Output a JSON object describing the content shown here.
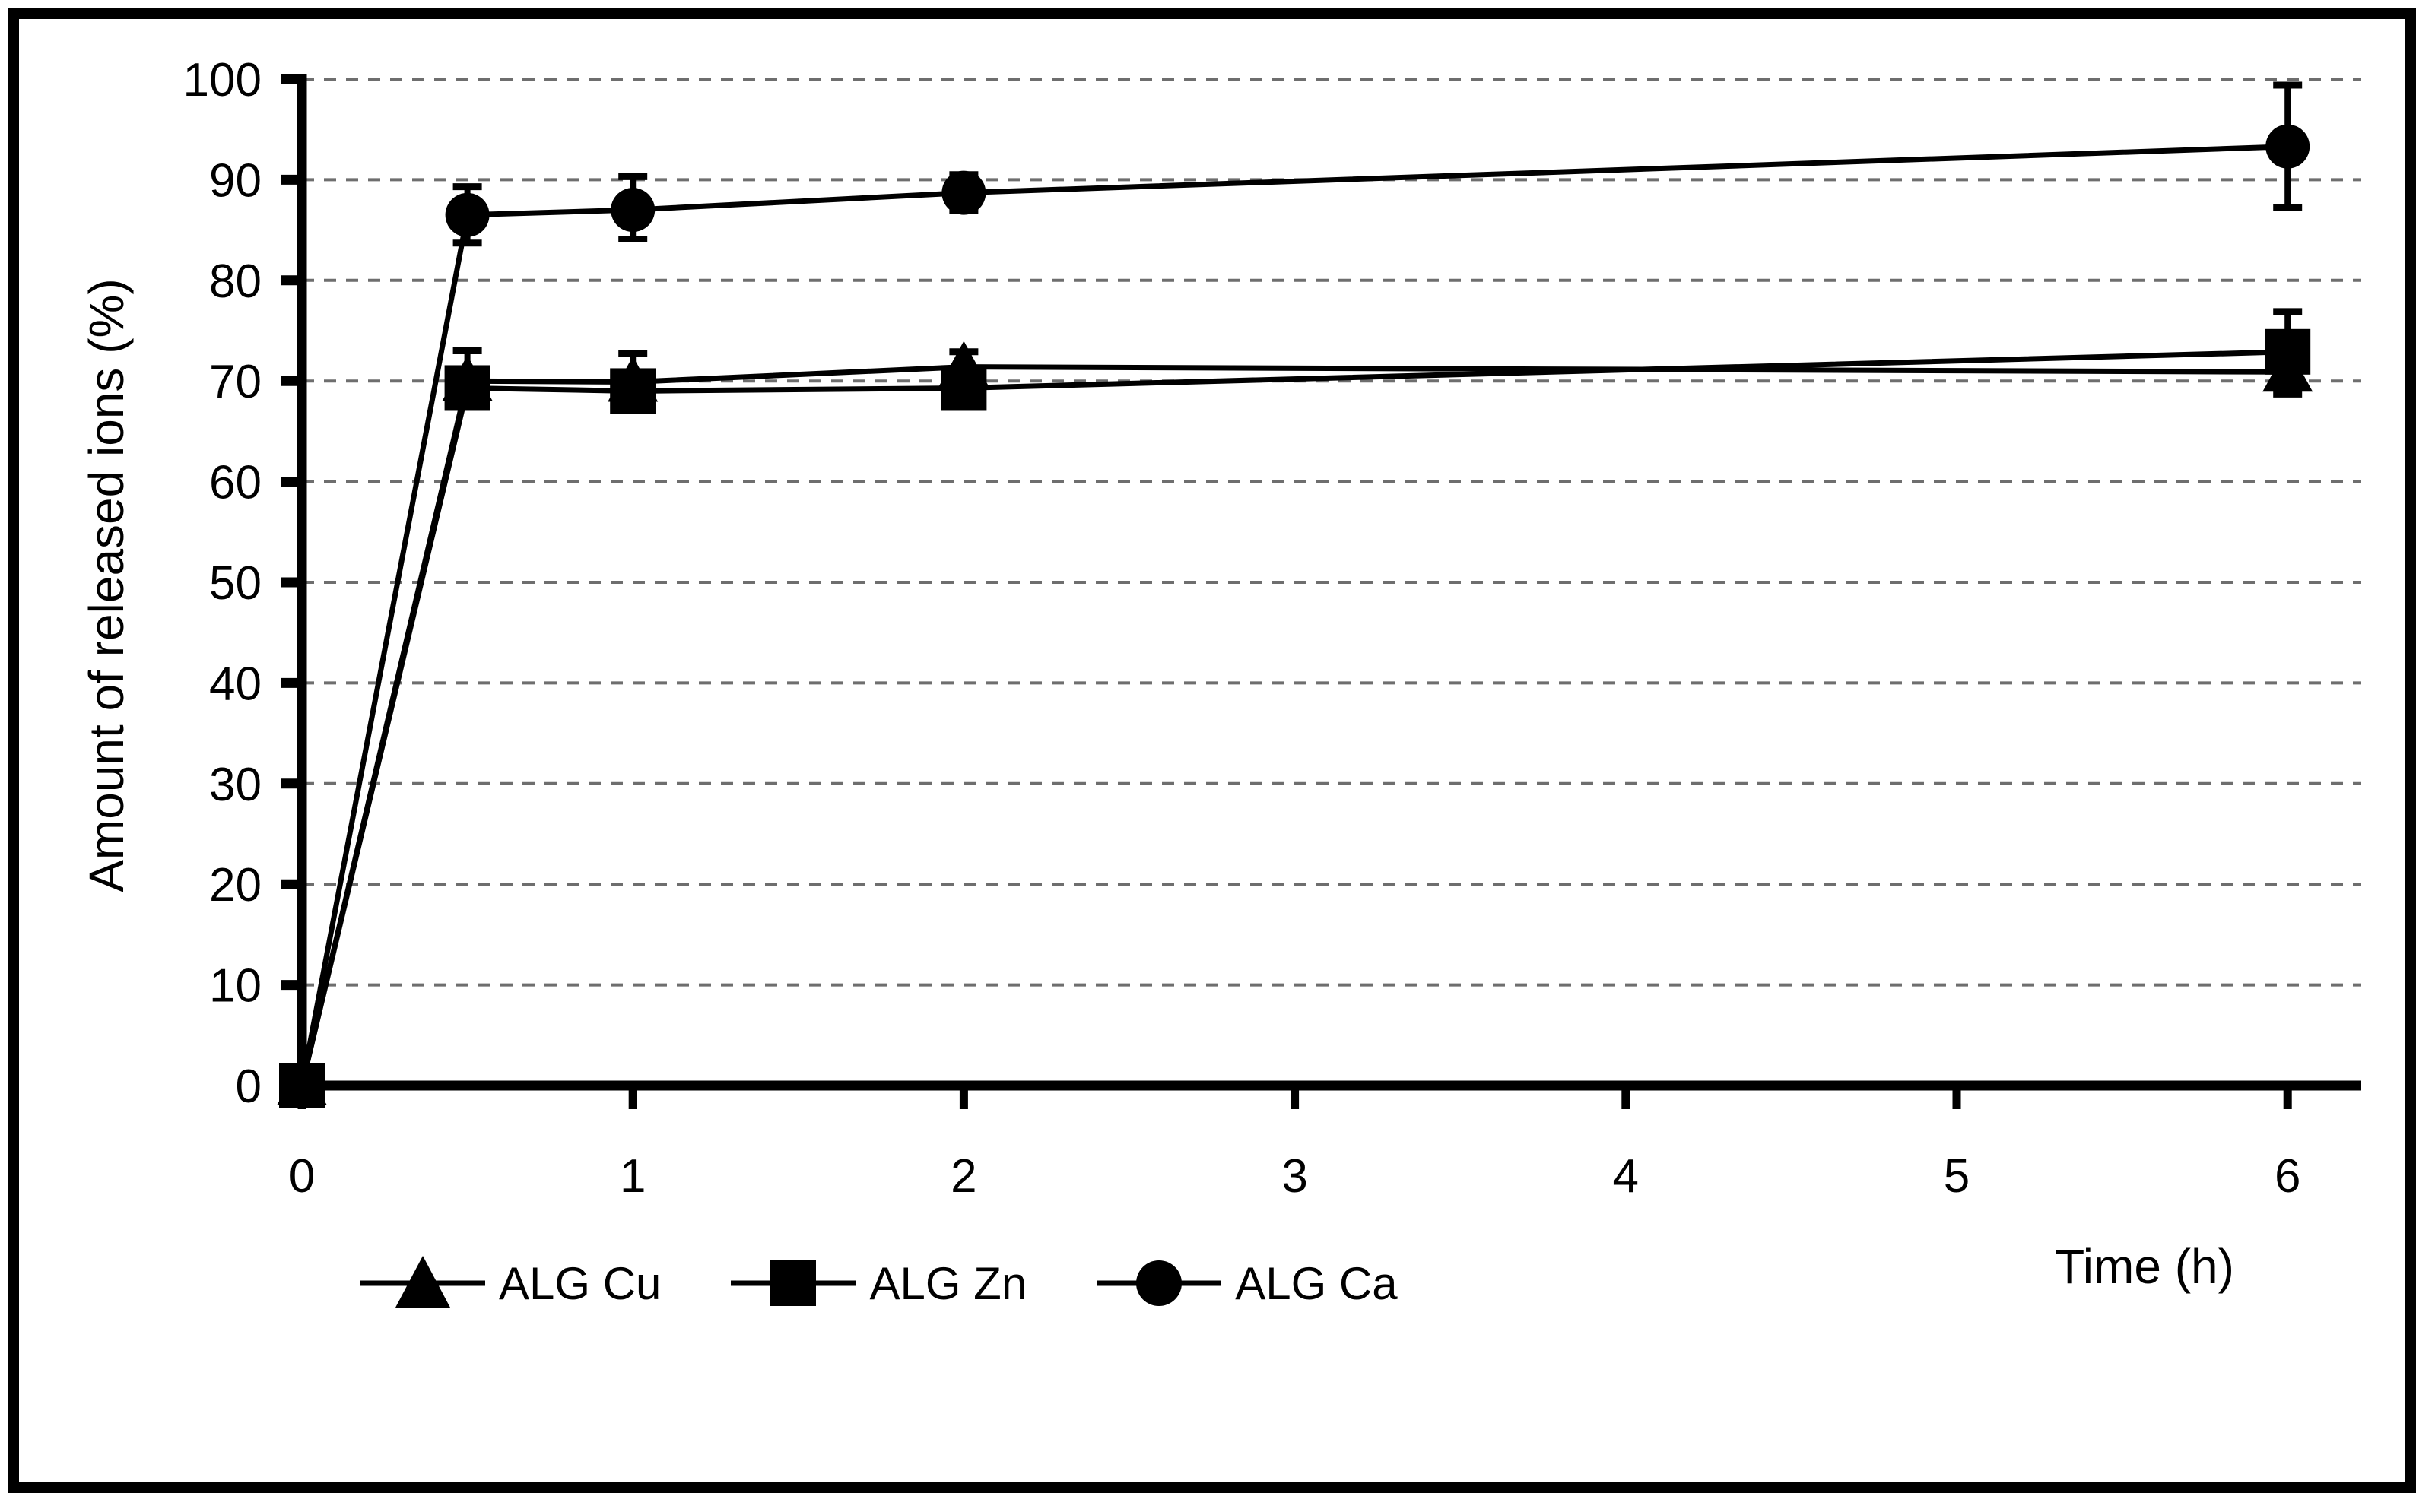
{
  "figure": {
    "background": "#ffffff",
    "border_color": "#000000",
    "axis_color": "#000000",
    "grid_color": "#6e6e6e",
    "series_color": "#000000"
  },
  "chart_data": {
    "type": "line",
    "title": "",
    "xlabel": "Time (h)",
    "ylabel": "Amount of released ions (%)",
    "x_tick_labels": [
      "0",
      "1",
      "2",
      "3",
      "4",
      "5",
      "6"
    ],
    "x_ticks": [
      0,
      1,
      2,
      3,
      4,
      5,
      6
    ],
    "y_ticks": [
      0,
      10,
      20,
      30,
      40,
      50,
      60,
      70,
      80,
      90,
      100
    ],
    "xlim": [
      0,
      6.25
    ],
    "ylim": [
      0,
      100
    ],
    "grid": "horizontal-dashed",
    "legend_position": "bottom-left",
    "x": [
      0,
      0.5,
      1,
      2,
      6
    ],
    "series": [
      {
        "name": "ALG Cu",
        "marker": "triangle",
        "color": "#000000",
        "values": [
          0,
          70.0,
          69.9,
          71.4,
          70.9
        ],
        "err_up": [
          0,
          0,
          0,
          0,
          0
        ],
        "err_down": [
          0,
          0,
          0,
          0,
          2.2
        ]
      },
      {
        "name": "ALG Zn",
        "marker": "square",
        "color": "#000000",
        "values": [
          0,
          69.3,
          69.0,
          69.3,
          72.9
        ],
        "err_up": [
          0,
          3.7,
          3.7,
          3.6,
          4.0
        ],
        "err_down": [
          0,
          0,
          0,
          0,
          0
        ]
      },
      {
        "name": "ALG Ca",
        "marker": "circle",
        "color": "#000000",
        "values": [
          0,
          86.5,
          87.0,
          88.7,
          93.3
        ],
        "err_up": [
          0,
          2.8,
          3.3,
          1.8,
          6.1
        ],
        "err_down": [
          0,
          2.8,
          2.9,
          1.8,
          6.1
        ]
      }
    ]
  }
}
